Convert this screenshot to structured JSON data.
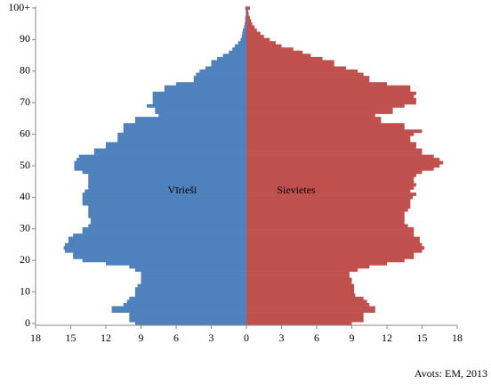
{
  "chart_data": {
    "type": "pyramid",
    "source": "Avots: EM, 2013",
    "categories": [
      "0",
      null,
      null,
      null,
      null,
      null,
      null,
      null,
      null,
      null,
      "10",
      null,
      null,
      null,
      null,
      null,
      null,
      null,
      null,
      null,
      "20",
      null,
      null,
      null,
      null,
      null,
      null,
      null,
      null,
      null,
      "30",
      null,
      null,
      null,
      null,
      null,
      null,
      null,
      null,
      null,
      "40",
      null,
      null,
      null,
      null,
      null,
      null,
      null,
      null,
      null,
      "50",
      null,
      null,
      null,
      null,
      null,
      null,
      null,
      null,
      null,
      "60",
      null,
      null,
      null,
      null,
      null,
      null,
      null,
      null,
      null,
      "70",
      null,
      null,
      null,
      null,
      null,
      null,
      null,
      null,
      null,
      "80",
      null,
      null,
      null,
      null,
      null,
      null,
      null,
      null,
      null,
      "90",
      null,
      null,
      null,
      null,
      null,
      null,
      null,
      null,
      null,
      "100+"
    ],
    "xlim": [
      -18,
      18
    ],
    "xticks": [
      {
        "value": -18,
        "label": "18"
      },
      {
        "value": -15,
        "label": "15"
      },
      {
        "value": -12,
        "label": "12"
      },
      {
        "value": -9,
        "label": "9"
      },
      {
        "value": -6,
        "label": "6"
      },
      {
        "value": -3,
        "label": "3"
      },
      0,
      3,
      6,
      9,
      12,
      15,
      18
    ],
    "series": [
      {
        "name": "Vīrieši",
        "color": "#4f81bd",
        "side": "left",
        "values": [
          9.5,
          10,
          10,
          10,
          11.5,
          11.5,
          10.5,
          10.2,
          10,
          9.5,
          9.5,
          9.5,
          9.3,
          9,
          9,
          9,
          9,
          9.5,
          10,
          12,
          14,
          14.8,
          14.8,
          15.5,
          15.6,
          15.5,
          15.2,
          15.2,
          14.8,
          14,
          14,
          13.5,
          13.3,
          13.3,
          13.5,
          13.5,
          13.5,
          13.5,
          14,
          14,
          14,
          14,
          13.8,
          13.5,
          13.5,
          13.5,
          13.5,
          13.5,
          14,
          14.7,
          14.7,
          14.7,
          14.5,
          14.3,
          13,
          13,
          12,
          12,
          11,
          11,
          11,
          10.5,
          10.5,
          10.5,
          9.5,
          9.5,
          7.5,
          7.8,
          7.8,
          8.5,
          8,
          8,
          8,
          8,
          7,
          7,
          6,
          4.5,
          4.5,
          4.3,
          4,
          3.5,
          3,
          3,
          2.5,
          2,
          1.5,
          1.2,
          1,
          0.7,
          0.5,
          0.4,
          0.35,
          0.3,
          0.2,
          0.15,
          0.1,
          0.1,
          0.05,
          0.05,
          0.1
        ]
      },
      {
        "name": "Sievietes",
        "color": "#c0504d",
        "side": "right",
        "values": [
          9,
          10,
          10,
          10,
          11,
          11,
          10.5,
          10.3,
          10,
          9.3,
          9.2,
          9.2,
          9.2,
          9,
          9,
          8.8,
          8.8,
          9.5,
          10.5,
          12,
          13.5,
          14.3,
          14.3,
          15,
          15.2,
          15,
          14.8,
          14.8,
          14.3,
          14.3,
          14.3,
          13.8,
          13.5,
          13.5,
          13.5,
          13.5,
          13.8,
          14,
          14,
          14,
          14.2,
          14.5,
          14,
          14.3,
          14.5,
          14.3,
          14.3,
          14.5,
          15,
          16,
          16.5,
          16.8,
          16.5,
          16,
          15,
          15,
          14.5,
          14.5,
          14,
          14,
          14.3,
          15,
          13.5,
          13.5,
          11.5,
          11.5,
          11,
          12.5,
          12.5,
          13.5,
          14.5,
          14.5,
          14.3,
          14.5,
          14,
          14,
          12,
          10.5,
          10.5,
          10,
          9.5,
          8.5,
          7.5,
          7.5,
          6.5,
          5.5,
          4.8,
          4,
          3,
          2.5,
          2,
          1.5,
          1.2,
          0.9,
          0.7,
          0.5,
          0.4,
          0.3,
          0.2,
          0.15,
          0.3
        ]
      }
    ]
  }
}
